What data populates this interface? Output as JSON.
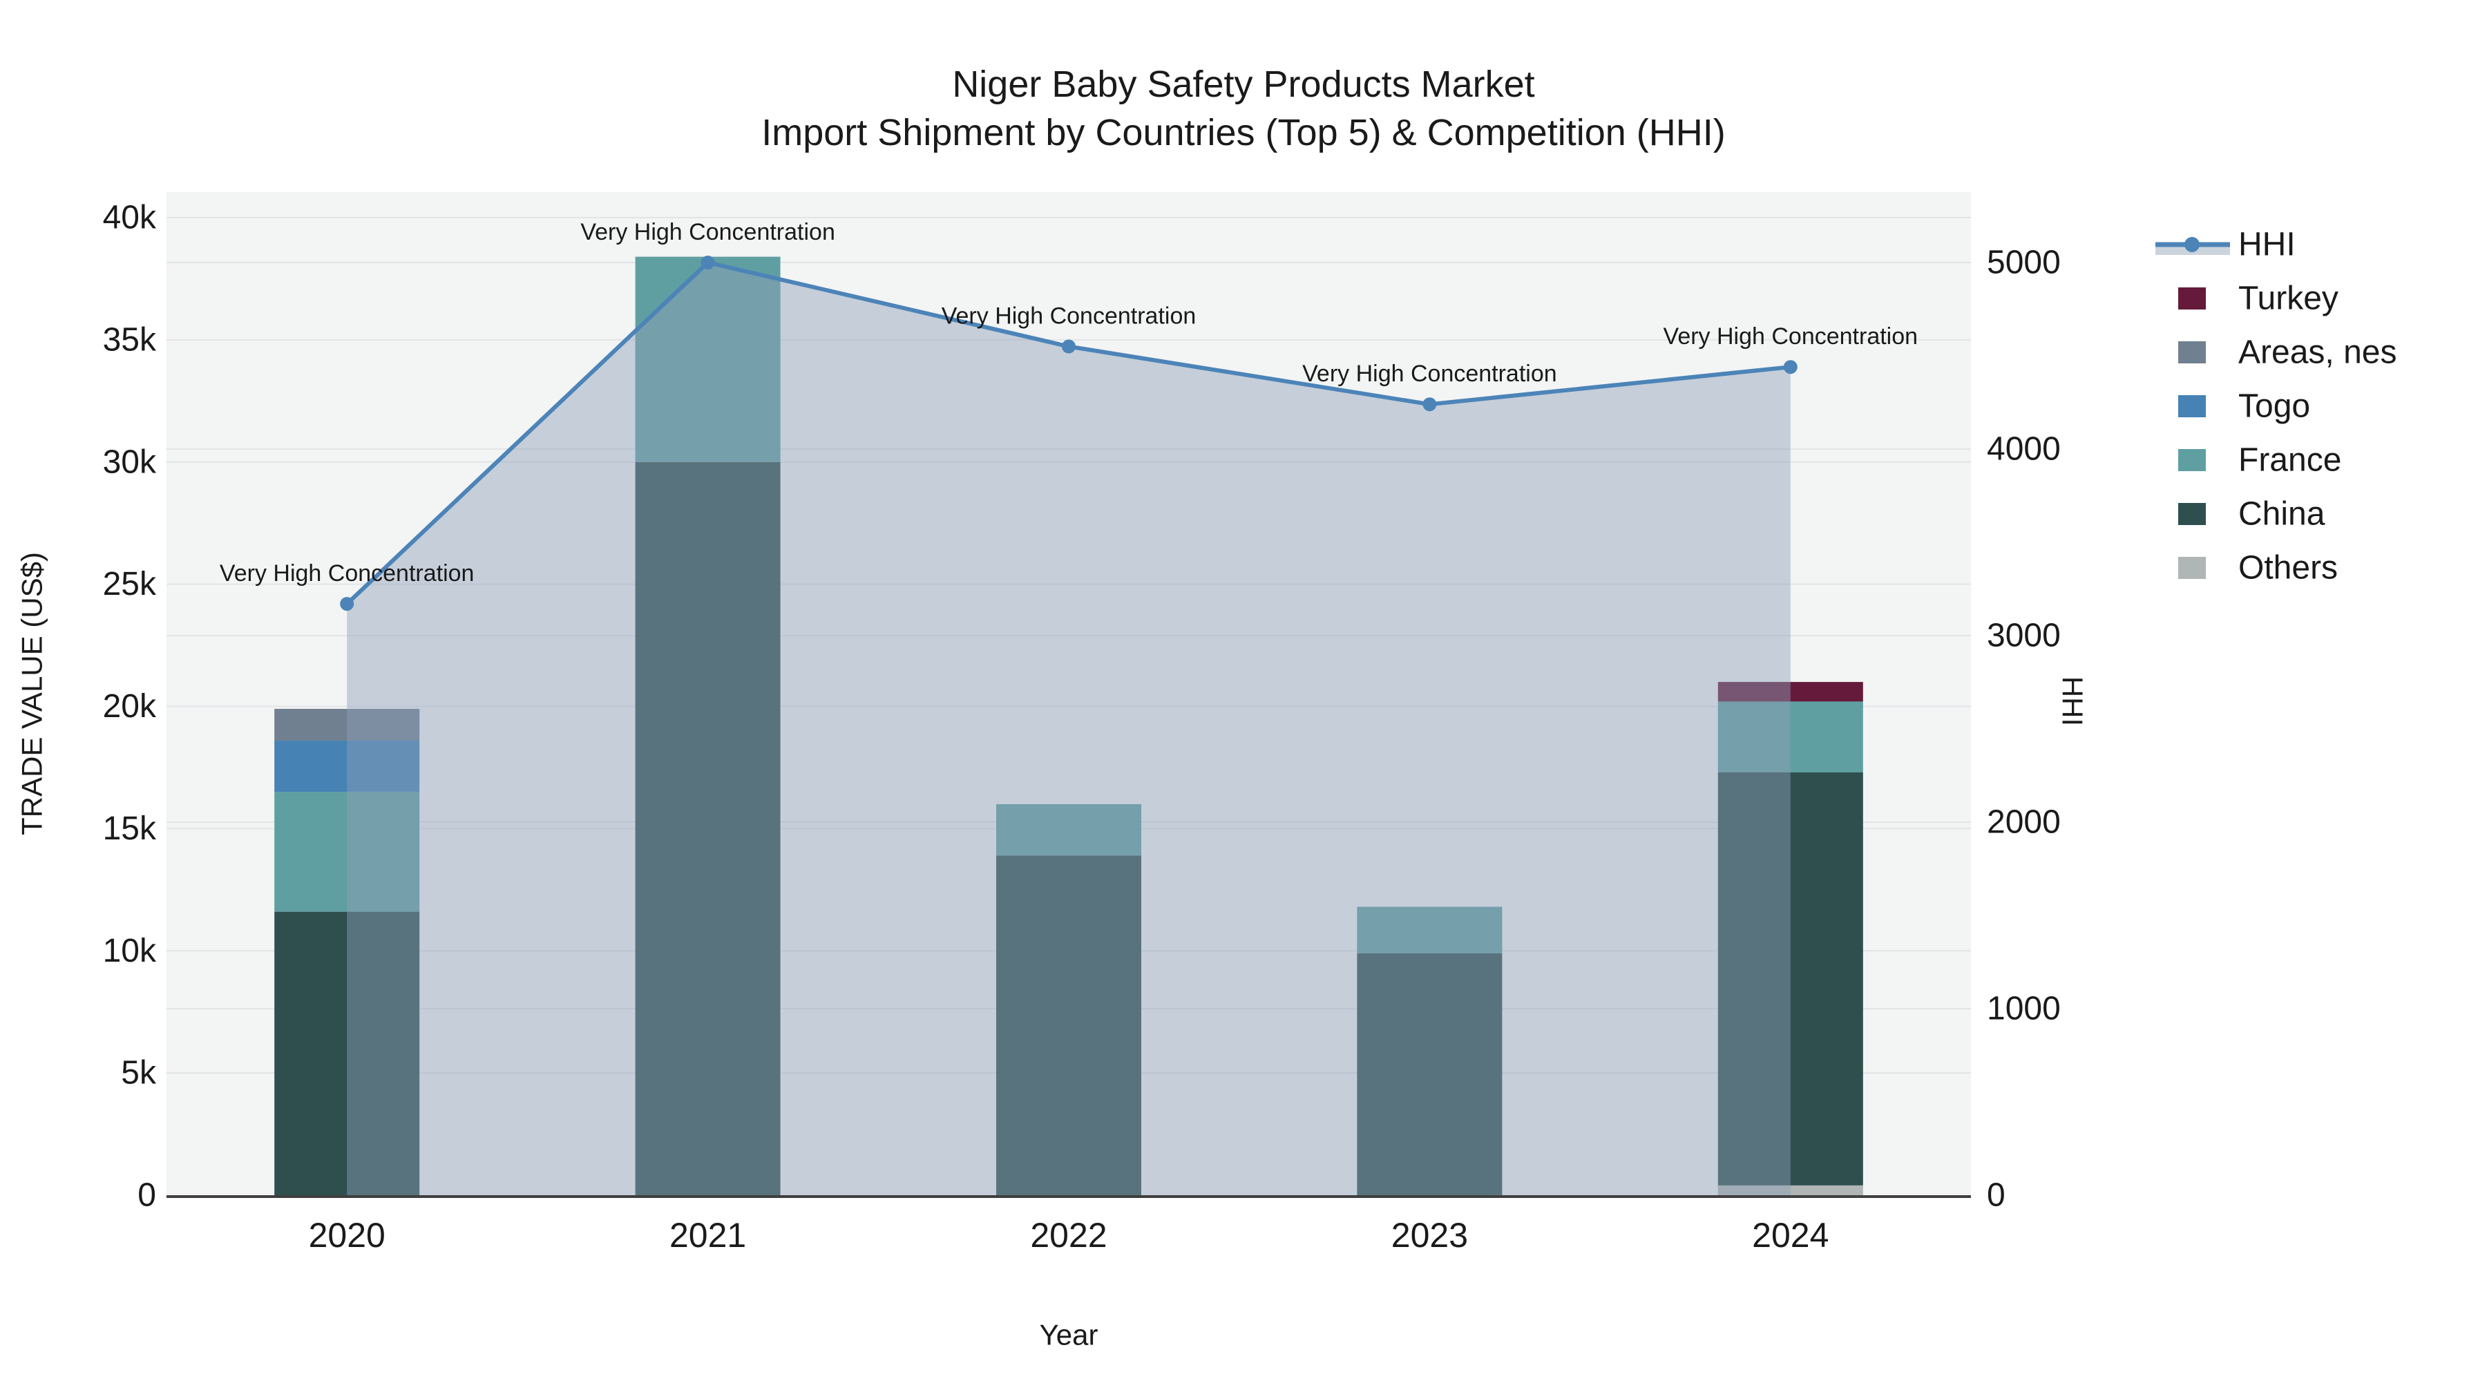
{
  "chart_data": {
    "type": "bar",
    "subtype": "stacked-bars-with-dual-axis-line",
    "title_line1": "Niger Baby Safety Products Market",
    "title_line2": "Import Shipment by Countries (Top 5) & Competition (HHI)",
    "xlabel": "Year",
    "ylabel_left": "TRADE VALUE (US$)",
    "ylabel_right": "HHI",
    "categories": [
      "2020",
      "2021",
      "2022",
      "2023",
      "2024"
    ],
    "bar_series": [
      {
        "name": "Others",
        "color": "#B0B6B5",
        "values": [
          0,
          0,
          0,
          0,
          400
        ]
      },
      {
        "name": "China",
        "color": "#2F4F4F",
        "values": [
          11600,
          30000,
          13900,
          9900,
          16900
        ]
      },
      {
        "name": "France",
        "color": "#5F9FA1",
        "values": [
          4900,
          8400,
          2100,
          1900,
          2900
        ]
      },
      {
        "name": "Togo",
        "color": "#4682B4",
        "values": [
          2100,
          0,
          0,
          0,
          0
        ]
      },
      {
        "name": "Areas, nes",
        "color": "#708090",
        "values": [
          1300,
          0,
          0,
          0,
          0
        ]
      },
      {
        "name": "Turkey",
        "color": "#651A3B",
        "values": [
          0,
          0,
          0,
          0,
          800
        ]
      }
    ],
    "line_series": {
      "name": "HHI",
      "color": "#4C84B8",
      "area_color": "rgba(143,160,184,0.45)",
      "values": [
        3170,
        5000,
        4550,
        4240,
        4440
      ]
    },
    "annotations": [
      "Very High Concentration",
      "Very High Concentration",
      "Very High Concentration",
      "Very High Concentration",
      "Very High Concentration"
    ],
    "y_left": {
      "min": 0,
      "max": 40000,
      "ticks": [
        {
          "v": 0,
          "label": "0"
        },
        {
          "v": 5000,
          "label": "5k"
        },
        {
          "v": 10000,
          "label": "10k"
        },
        {
          "v": 15000,
          "label": "15k"
        },
        {
          "v": 20000,
          "label": "20k"
        },
        {
          "v": 25000,
          "label": "25k"
        },
        {
          "v": 30000,
          "label": "30k"
        },
        {
          "v": 35000,
          "label": "35k"
        },
        {
          "v": 40000,
          "label": "40k"
        }
      ]
    },
    "y_right": {
      "min": 0,
      "max": 5000,
      "ticks": [
        {
          "v": 0,
          "label": "0"
        },
        {
          "v": 1000,
          "label": "1000"
        },
        {
          "v": 2000,
          "label": "2000"
        },
        {
          "v": 3000,
          "label": "3000"
        },
        {
          "v": 4000,
          "label": "4000"
        },
        {
          "v": 5000,
          "label": "5000"
        }
      ]
    },
    "legend": [
      {
        "label": "HHI",
        "type": "line",
        "color": "#4C84B8"
      },
      {
        "label": "Turkey",
        "type": "swatch",
        "color": "#651A3B"
      },
      {
        "label": "Areas, nes",
        "type": "swatch",
        "color": "#708090"
      },
      {
        "label": "Togo",
        "type": "swatch",
        "color": "#4682B4"
      },
      {
        "label": "France",
        "type": "swatch",
        "color": "#5F9FA1"
      },
      {
        "label": "China",
        "type": "swatch",
        "color": "#2F4F4F"
      },
      {
        "label": "Others",
        "type": "swatch",
        "color": "#B0B6B5"
      }
    ],
    "colors": {
      "plot_background": "#F3F4F4",
      "paper_background": "#FFFFFF",
      "gridline": "#E2E5E7",
      "axis_line": "#3F3F3F",
      "legend_area_band": "#CBD3DD"
    }
  }
}
